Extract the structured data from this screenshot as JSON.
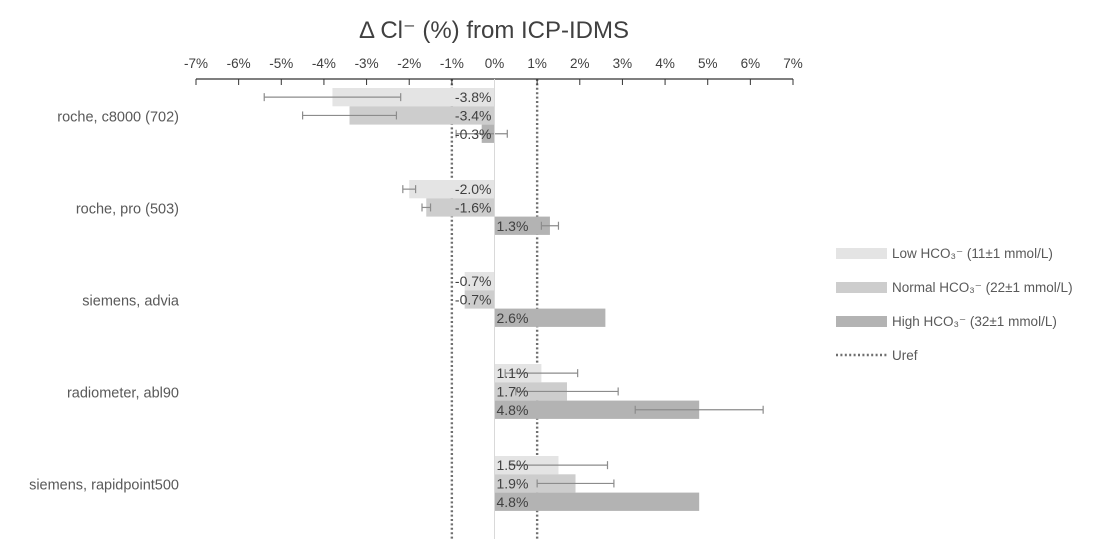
{
  "chart_data": {
    "type": "bar",
    "orientation": "horizontal",
    "title": "Δ Cl⁻ (%) from ICP-IDMS",
    "xlabel": "",
    "ylabel": "",
    "xlim": [
      -7,
      7
    ],
    "x_ticks": [
      "-7%",
      "-6%",
      "-5%",
      "-4%",
      "-3%",
      "-2%",
      "-1%",
      "0%",
      "1%",
      "2%",
      "3%",
      "4%",
      "5%",
      "6%",
      "7%"
    ],
    "axis_position": "top",
    "grid": false,
    "legend_position": "right",
    "categories": [
      "roche, c8000 (702)",
      "roche, pro (503)",
      "siemens, advia",
      "radiometer, abl90",
      "siemens, rapidpoint500"
    ],
    "series": [
      {
        "name": "Low HCO₃⁻ (11±1 mmol/L)",
        "color": "#e4e4e4",
        "values": [
          -3.8,
          -2.0,
          -0.7,
          1.1,
          1.5
        ],
        "labels": [
          "-3.8%",
          "-2.0%",
          "-0.7%",
          "1.1%",
          "1.5%"
        ],
        "error": [
          1.6,
          0.15,
          0,
          0.85,
          1.15
        ]
      },
      {
        "name": "Normal HCO₃⁻ (22±1 mmol/L)",
        "color": "#cdcdcd",
        "values": [
          -3.4,
          -1.6,
          -0.7,
          1.7,
          1.9
        ],
        "labels": [
          "-3.4%",
          "-1.6%",
          "-0.7%",
          "1.7%",
          "1.9%"
        ],
        "error": [
          1.1,
          0.1,
          0,
          1.2,
          0.9
        ]
      },
      {
        "name": "High HCO₃⁻ (32±1 mmol/L)",
        "color": "#b3b3b3",
        "values": [
          -0.3,
          1.3,
          2.6,
          4.8,
          4.8
        ],
        "labels": [
          "-0.3%",
          "1.3%",
          "2.6%",
          "4.8%",
          "4.8%"
        ],
        "error": [
          0.6,
          0.2,
          0,
          1.5,
          0
        ]
      }
    ],
    "reference_lines": {
      "name": "Uref",
      "values": [
        -1,
        1
      ],
      "style": "dotted",
      "color": "#6f6f6f"
    }
  }
}
